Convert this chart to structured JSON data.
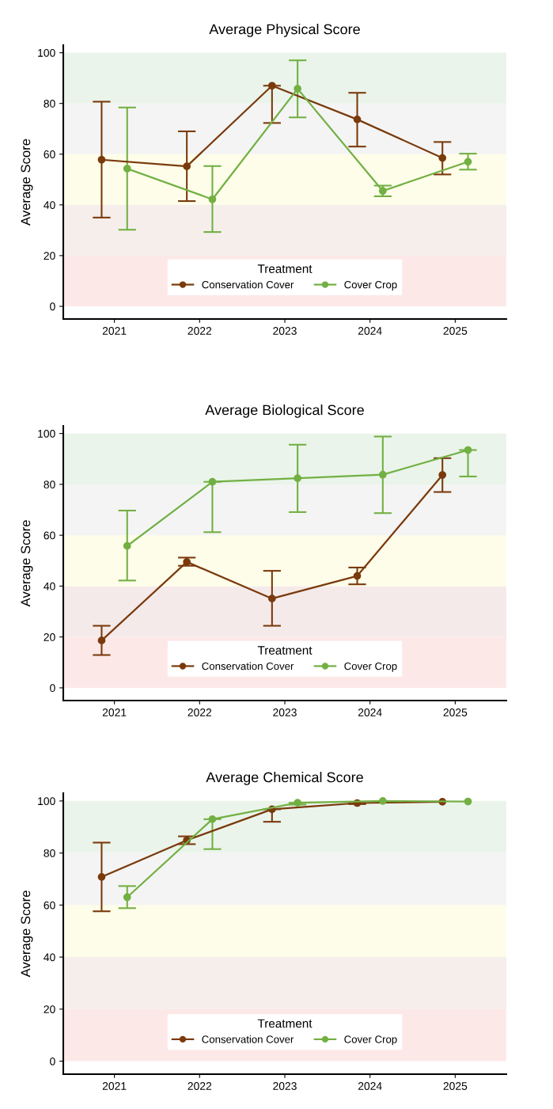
{
  "chart_data": [
    {
      "type": "line",
      "title": "Average Physical Score",
      "ylabel": "Average Score",
      "legend_title": "Treatment",
      "legend": "bottom",
      "marker": "circle",
      "grid": false,
      "categories": [
        "2021",
        "2022",
        "2023",
        "2024",
        "2025"
      ],
      "ylim": [
        -5,
        103
      ],
      "yticks": [
        0,
        20,
        40,
        60,
        80,
        100
      ],
      "bands": [
        {
          "axis": "y",
          "from": 0,
          "to": 20,
          "color": "#fde8e8"
        },
        {
          "axis": "y",
          "from": 20,
          "to": 40,
          "color": "#f5eeeb"
        },
        {
          "axis": "y",
          "from": 40,
          "to": 60,
          "color": "#fefde9"
        },
        {
          "axis": "y",
          "from": 60,
          "to": 80,
          "color": "#f4f4f4"
        },
        {
          "axis": "y",
          "from": 80,
          "to": 100,
          "color": "#eaf4ea"
        }
      ],
      "series": [
        {
          "name": "Conservation Cover",
          "color": "#7a3a0c",
          "values": [
            57.8,
            55.2,
            87,
            73.7,
            58.5
          ],
          "errors": [
            [
              35,
              80.7
            ],
            [
              41.5,
              69
            ],
            [
              72.3,
              87
            ],
            [
              63,
              84.2
            ],
            [
              52,
              64.8
            ]
          ]
        },
        {
          "name": "Cover Crop",
          "color": "#72b043",
          "values": [
            54.3,
            42.2,
            85.8,
            45.5,
            57
          ],
          "errors": [
            [
              30.2,
              78.4
            ],
            [
              29.3,
              55.3
            ],
            [
              74.5,
              97
            ],
            [
              43.4,
              47.6
            ],
            [
              53.9,
              60.2
            ]
          ]
        }
      ]
    },
    {
      "type": "line",
      "title": "Average Biological Score",
      "ylabel": "Average Score",
      "legend_title": "Treatment",
      "legend": "bottom",
      "marker": "circle",
      "grid": false,
      "categories": [
        "2021",
        "2022",
        "2023",
        "2024",
        "2025"
      ],
      "ylim": [
        -5,
        103
      ],
      "yticks": [
        0,
        20,
        40,
        60,
        80,
        100
      ],
      "bands": [
        {
          "axis": "y",
          "from": 0,
          "to": 20,
          "color": "#fde8e8"
        },
        {
          "axis": "y",
          "from": 20,
          "to": 40,
          "color": "#f5eaea"
        },
        {
          "axis": "y",
          "from": 40,
          "to": 60,
          "color": "#fefde9"
        },
        {
          "axis": "y",
          "from": 60,
          "to": 80,
          "color": "#f4f4f4"
        },
        {
          "axis": "y",
          "from": 80,
          "to": 100,
          "color": "#eaf4ea"
        }
      ],
      "series": [
        {
          "name": "Conservation Cover",
          "color": "#7a3a0c",
          "values": [
            18.6,
            49.5,
            35.1,
            44,
            83.7
          ],
          "errors": [
            [
              12.9,
              24.4
            ],
            [
              48,
              51.2
            ],
            [
              24.4,
              46
            ],
            [
              40.7,
              47.3
            ],
            [
              77,
              90.3
            ]
          ]
        },
        {
          "name": "Cover Crop",
          "color": "#72b043",
          "values": [
            55.8,
            81,
            82.4,
            83.8,
            93.5
          ],
          "errors": [
            [
              42.2,
              69.7
            ],
            [
              61.2,
              81
            ],
            [
              69.1,
              95.6
            ],
            [
              68.7,
              98.8
            ],
            [
              83.1,
              93.5
            ]
          ]
        }
      ]
    },
    {
      "type": "line",
      "title": "Average Chemical Score",
      "ylabel": "Average Score",
      "legend_title": "Treatment",
      "legend": "bottom",
      "marker": "circle",
      "grid": false,
      "categories": [
        "2021",
        "2022",
        "2023",
        "2024",
        "2025"
      ],
      "ylim": [
        -5,
        103
      ],
      "yticks": [
        0,
        20,
        40,
        60,
        80,
        100
      ],
      "bands": [
        {
          "axis": "y",
          "from": 0,
          "to": 20,
          "color": "#fde8e8"
        },
        {
          "axis": "y",
          "from": 20,
          "to": 40,
          "color": "#f5eeeb"
        },
        {
          "axis": "y",
          "from": 40,
          "to": 60,
          "color": "#fefde9"
        },
        {
          "axis": "y",
          "from": 60,
          "to": 80,
          "color": "#f4f4f4"
        },
        {
          "axis": "y",
          "from": 80,
          "to": 100,
          "color": "#eaf4ea"
        }
      ],
      "series": [
        {
          "name": "Conservation Cover",
          "color": "#7a3a0c",
          "values": [
            70.8,
            84.9,
            96.8,
            99.2,
            99.7
          ],
          "errors": [
            [
              57.6,
              84
            ],
            [
              83.4,
              86.4
            ],
            [
              92,
              96.8
            ],
            [
              98.8,
              99.2
            ],
            null
          ]
        },
        {
          "name": "Cover Crop",
          "color": "#72b043",
          "values": [
            63,
            93,
            99.3,
            100,
            99.8
          ],
          "errors": [
            [
              58.8,
              67.3
            ],
            [
              81.5,
              93
            ],
            [
              98.6,
              99.3
            ],
            null,
            null
          ]
        }
      ]
    }
  ]
}
